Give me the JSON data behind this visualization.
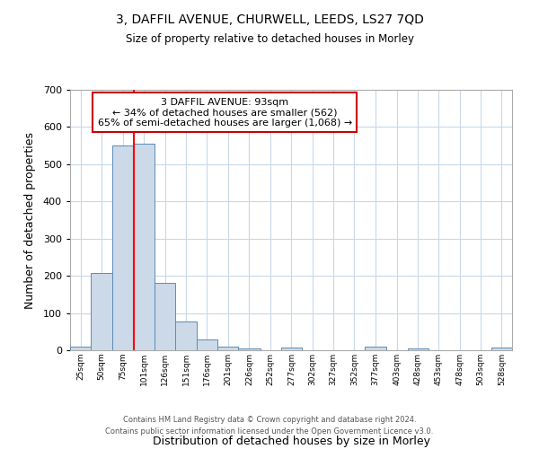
{
  "title1": "3, DAFFIL AVENUE, CHURWELL, LEEDS, LS27 7QD",
  "title2": "Size of property relative to detached houses in Morley",
  "xlabel": "Distribution of detached houses by size in Morley",
  "ylabel": "Number of detached properties",
  "bin_labels": [
    "25sqm",
    "50sqm",
    "75sqm",
    "101sqm",
    "126sqm",
    "151sqm",
    "176sqm",
    "201sqm",
    "226sqm",
    "252sqm",
    "277sqm",
    "302sqm",
    "327sqm",
    "352sqm",
    "377sqm",
    "403sqm",
    "428sqm",
    "453sqm",
    "478sqm",
    "503sqm",
    "528sqm"
  ],
  "bin_left_edges": [
    25,
    50,
    75,
    101,
    126,
    151,
    176,
    201,
    226,
    252,
    277,
    302,
    327,
    352,
    377,
    403,
    428,
    453,
    478,
    503,
    528
  ],
  "bin_widths": [
    25,
    25,
    26,
    25,
    25,
    25,
    25,
    25,
    26,
    25,
    25,
    25,
    25,
    25,
    26,
    25,
    25,
    25,
    25,
    25,
    25
  ],
  "bar_heights": [
    10,
    207,
    551,
    556,
    180,
    77,
    30,
    10,
    6,
    0,
    7,
    0,
    0,
    0,
    10,
    0,
    6,
    0,
    0,
    0,
    7
  ],
  "bar_color": "#ccd9e8",
  "bar_edge_color": "#5b8db8",
  "red_line_x": 101,
  "annotation_title": "3 DAFFIL AVENUE: 93sqm",
  "annotation_line1": "← 34% of detached houses are smaller (562)",
  "annotation_line2": "65% of semi-detached houses are larger (1,068) →",
  "annotation_box_color": "#ffffff",
  "annotation_box_edge": "#cc0000",
  "ylim": [
    0,
    700
  ],
  "yticks": [
    0,
    100,
    200,
    300,
    400,
    500,
    600,
    700
  ],
  "xlim_left": 25,
  "xlim_right": 553,
  "footer1": "Contains HM Land Registry data © Crown copyright and database right 2024.",
  "footer2": "Contains public sector information licensed under the Open Government Licence v3.0.",
  "background_color": "#ffffff",
  "grid_color": "#c8d8e8"
}
